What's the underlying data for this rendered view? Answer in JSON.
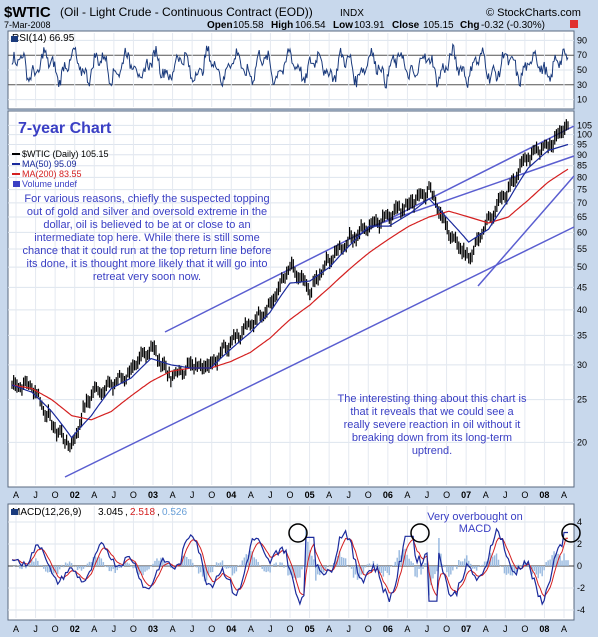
{
  "header": {
    "symbol": "$WTIC",
    "title": " (Oil - Light Crude - Continuous Contract (EOD))",
    "exchange": "INDX",
    "date": "7-Mar-2008",
    "brand": "© StockCharts.com",
    "open_label": "Open",
    "open": "105.58",
    "high_label": "High",
    "high": "106.54",
    "low_label": "Low",
    "low": "103.91",
    "close_label": "Close",
    "close": "105.15",
    "chg_label": "Chg",
    "chg": "-0.32 (-0.30%)"
  },
  "rsi_panel": {
    "label": "RSI(14) 66.95",
    "ticks": [
      "90",
      "70",
      "50",
      "30",
      "10"
    ]
  },
  "price_panel": {
    "chart_title": "7-year Chart",
    "legend": {
      "main": "$WTIC (Daily) 105.15",
      "ma50": "MA(50) 95.09",
      "ma200": "MA(200) 83.55",
      "volume": "Volume undef"
    },
    "ticks": [
      "105",
      "100",
      "95",
      "90",
      "85",
      "80",
      "75",
      "70",
      "65",
      "60",
      "55",
      "50",
      "45",
      "40",
      "35",
      "30",
      "25",
      "20"
    ],
    "annotation_top": "For various reasons, chiefly the suspected topping out of gold and silver and oversold extreme in the dollar, oil is believed to be at or close to an intermediate top here. While there is still some chance that it could run at the top return line before its done, it is thought more likely that it will go into retreat very soon now.",
    "annotation_bottom": "The interesting thing about this chart is that it reveals that we could see a really severe reaction in oil without it breaking down from its long-term uptrend."
  },
  "macd_panel": {
    "label_prefix": "MACD(12,26,9)",
    "macd": "3.045",
    "signal": "2.518",
    "histogram": "0.526",
    "annotation": "Very overbought on MACD",
    "ticks": [
      "4",
      "2",
      "0",
      "-2",
      "-4"
    ]
  },
  "x_axis": {
    "labels": [
      "A",
      "J",
      "O",
      "02",
      "A",
      "J",
      "O",
      "03",
      "A",
      "J",
      "O",
      "04",
      "A",
      "J",
      "O",
      "05",
      "A",
      "J",
      "O",
      "06",
      "A",
      "J",
      "O",
      "07",
      "A",
      "J",
      "O",
      "08",
      "A"
    ]
  },
  "colors": {
    "background": "#c8d8ec",
    "panel": "#ffffff",
    "price": "#000000",
    "ma50": "#1a2a9c",
    "ma200": "#d42020",
    "trendline": "#5a5ed0",
    "annotation": "#3a3fc4",
    "rsi_line": "#1a3a7c"
  },
  "chart_data": {
    "type": "line",
    "title": "$WTIC (Oil - Light Crude - Continuous Contract (EOD))",
    "y_scale": "log",
    "ylim": [
      16,
      112
    ],
    "x": [
      "2001-04",
      "2001-07",
      "2001-10",
      "2002-01",
      "2002-04",
      "2002-07",
      "2002-10",
      "2003-01",
      "2003-04",
      "2003-07",
      "2003-10",
      "2004-01",
      "2004-04",
      "2004-07",
      "2004-10",
      "2005-01",
      "2005-04",
      "2005-07",
      "2005-10",
      "2006-01",
      "2006-04",
      "2006-07",
      "2006-10",
      "2007-01",
      "2007-04",
      "2007-07",
      "2007-10",
      "2008-01",
      "2008-03"
    ],
    "series": [
      {
        "name": "$WTIC (Daily)",
        "values": [
          27,
          27,
          22,
          19.5,
          26,
          27,
          29,
          33,
          28,
          30,
          30,
          34,
          37,
          41,
          50,
          44,
          52,
          58,
          62,
          66,
          70,
          75,
          60,
          52,
          64,
          75,
          90,
          95,
          105
        ]
      },
      {
        "name": "MA(50)",
        "values": [
          27,
          26,
          23.5,
          20.5,
          23,
          26.5,
          28,
          31,
          30,
          29.5,
          29.5,
          32.5,
          35.5,
          39.5,
          46,
          46.5,
          50,
          56,
          62,
          62,
          66,
          71.5,
          64,
          57,
          61,
          71,
          84,
          92,
          95
        ]
      },
      {
        "name": "MA(200)",
        "values": [
          27,
          26.5,
          25,
          23,
          22.5,
          23.5,
          25.5,
          27.5,
          29,
          29.5,
          29.5,
          30.5,
          32,
          34.5,
          38,
          41,
          45,
          49.5,
          54,
          58,
          62,
          65,
          67,
          65,
          63,
          65,
          71,
          78,
          83.5
        ]
      }
    ],
    "rsi": {
      "name": "RSI(14)",
      "ylim": [
        0,
        100
      ],
      "last": 66.95
    },
    "macd": {
      "name": "MACD(12,26,9)",
      "ylim": [
        -4,
        4
      ],
      "macd": 3.045,
      "signal": 2.518,
      "histogram": 0.526
    }
  }
}
